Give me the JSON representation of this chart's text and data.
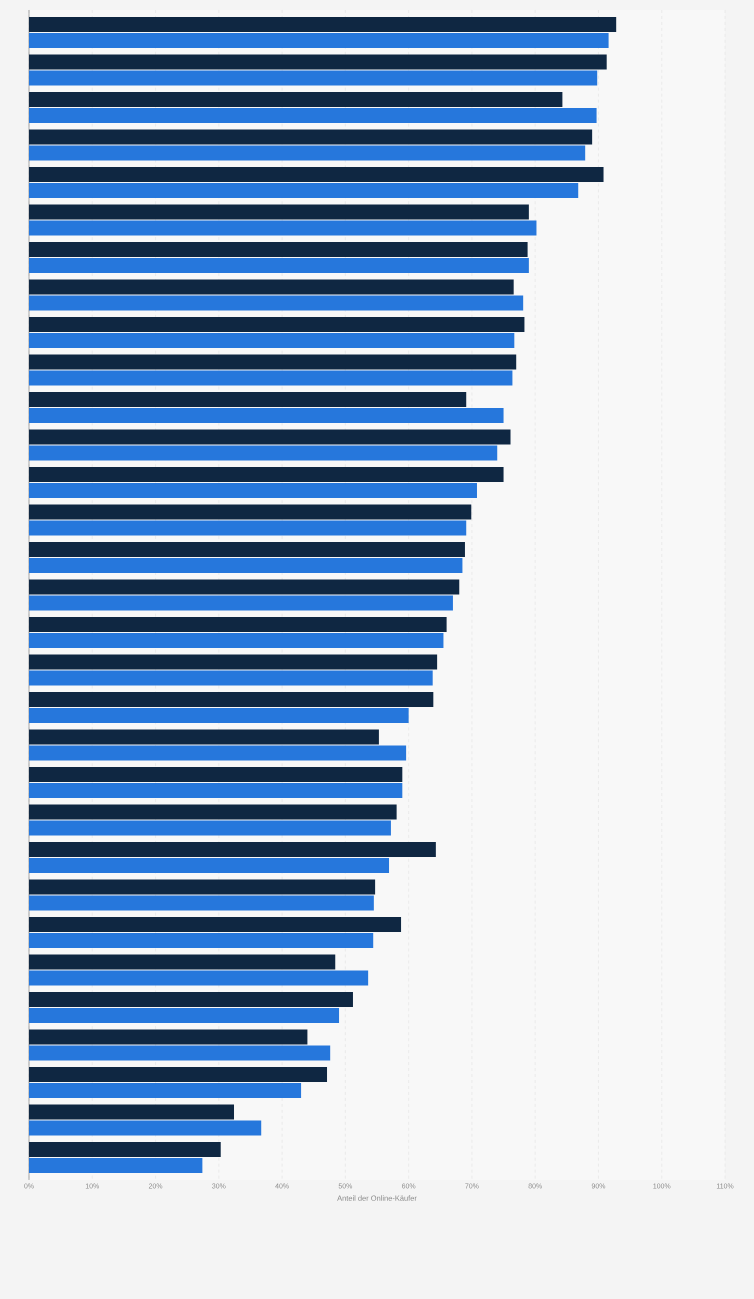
{
  "chart_data": {
    "type": "bar",
    "orientation": "horizontal",
    "xlabel": "Anteil der Online-Käufer",
    "categories": [
      null,
      null,
      null,
      null,
      null,
      null,
      null,
      null,
      null,
      null,
      null,
      null,
      null,
      null,
      null,
      null,
      null,
      null,
      null,
      null,
      null,
      null,
      null,
      null,
      null,
      null,
      null,
      null,
      null,
      null,
      null
    ],
    "series": [
      {
        "color": "#0f2742",
        "values": [
          92.8,
          91.3,
          84.3,
          89.0,
          90.8,
          79.0,
          78.8,
          76.6,
          78.3,
          77.0,
          69.1,
          76.1,
          75.0,
          69.9,
          68.9,
          68.0,
          66.0,
          64.5,
          63.9,
          55.3,
          59.0,
          58.1,
          64.3,
          54.7,
          58.8,
          48.4,
          51.2,
          44.0,
          47.1,
          32.4,
          30.3
        ]
      },
      {
        "color": "#2677dc",
        "values": [
          91.6,
          89.8,
          89.7,
          87.9,
          86.8,
          80.2,
          79.0,
          78.1,
          76.7,
          76.4,
          75.0,
          74.0,
          70.8,
          69.1,
          68.5,
          67.0,
          65.5,
          63.8,
          60.0,
          59.6,
          59.0,
          57.2,
          56.9,
          54.5,
          54.4,
          53.6,
          49.0,
          47.6,
          43.0,
          36.7,
          27.4
        ]
      }
    ],
    "xlim": [
      0,
      110
    ],
    "xticks": [
      {
        "value": 0,
        "label": "0%"
      },
      {
        "value": 10,
        "label": "10%"
      },
      {
        "value": 20,
        "label": "20%"
      },
      {
        "value": 30,
        "label": "30%"
      },
      {
        "value": 40,
        "label": "40%"
      },
      {
        "value": 50,
        "label": "50%"
      },
      {
        "value": 60,
        "label": "60%"
      },
      {
        "value": 70,
        "label": "70%"
      },
      {
        "value": 80,
        "label": "80%"
      },
      {
        "value": 90,
        "label": "90%"
      },
      {
        "value": 100,
        "label": "100%"
      },
      {
        "value": 110,
        "label": "110%"
      }
    ],
    "grid": "x"
  }
}
